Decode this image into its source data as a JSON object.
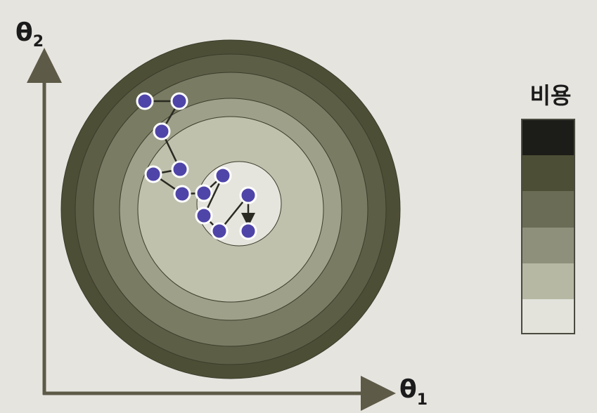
{
  "axes": {
    "y_label": "θ",
    "y_sub": "2",
    "x_label": "θ",
    "x_sub": "1",
    "color": "#5e5a48"
  },
  "contour": {
    "ring_colors": [
      "#4d4e36",
      "#5d5e46",
      "#7a7b63",
      "#9ea08a",
      "#bfc1ad",
      "#e6e5dd"
    ]
  },
  "path": {
    "point_color": "#4f45a8",
    "point_border": "#ffffff",
    "arrow_color": "#2a2a22",
    "steps": 13
  },
  "legend": {
    "title": "비용",
    "swatches": [
      "#1c1c18",
      "#4d4e36",
      "#6b6c55",
      "#8f907b",
      "#b6b8a4",
      "#e3e3dc"
    ]
  }
}
